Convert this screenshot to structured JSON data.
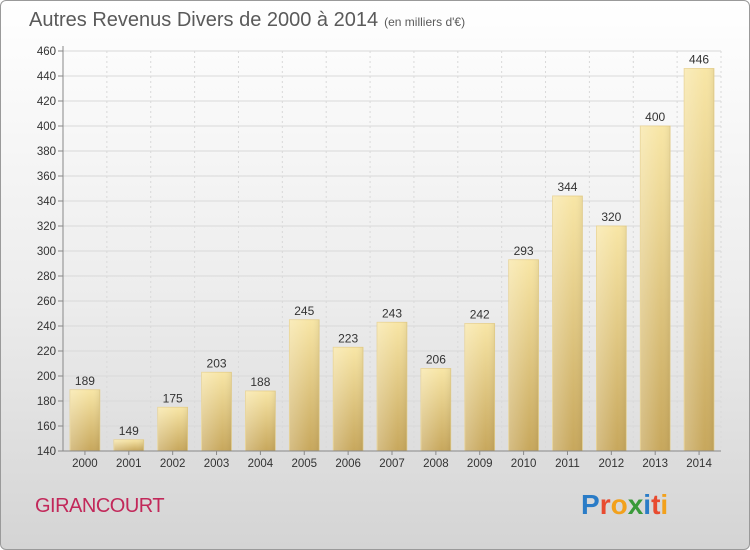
{
  "header": {
    "title": "Autres Revenus Divers de 2000 à 2014",
    "subtitle": "(en milliers d'€)"
  },
  "footer": {
    "place": "GIRANCOURT",
    "logo_letters": [
      "P",
      "r",
      "o",
      "x",
      "i",
      "t",
      "i"
    ],
    "logo_colors": [
      "#2a7cc7",
      "#e84a2f",
      "#f2a11c",
      "#3a9a3a",
      "#2a7cc7",
      "#e84a2f",
      "#f2a11c"
    ]
  },
  "colors": {
    "bar_light": "#f7e3a1",
    "bar_dark": "#c9a95e",
    "grid": "#d9d9d9",
    "place": "#c2285a"
  },
  "chart_data": {
    "type": "bar",
    "title": "Autres Revenus Divers de 2000 à 2014",
    "subtitle": "(en milliers d'€)",
    "categories": [
      "2000",
      "2001",
      "2002",
      "2003",
      "2004",
      "2005",
      "2006",
      "2007",
      "2008",
      "2009",
      "2010",
      "2011",
      "2012",
      "2013",
      "2014"
    ],
    "values": [
      189,
      149,
      175,
      203,
      188,
      245,
      223,
      243,
      206,
      242,
      293,
      344,
      320,
      400,
      446
    ],
    "xlabel": "",
    "ylabel": "",
    "ylim": [
      140,
      460
    ],
    "yticks": [
      140,
      160,
      180,
      200,
      220,
      240,
      260,
      280,
      300,
      320,
      340,
      360,
      380,
      400,
      420,
      440,
      460
    ],
    "grid": true,
    "data_labels": true
  }
}
